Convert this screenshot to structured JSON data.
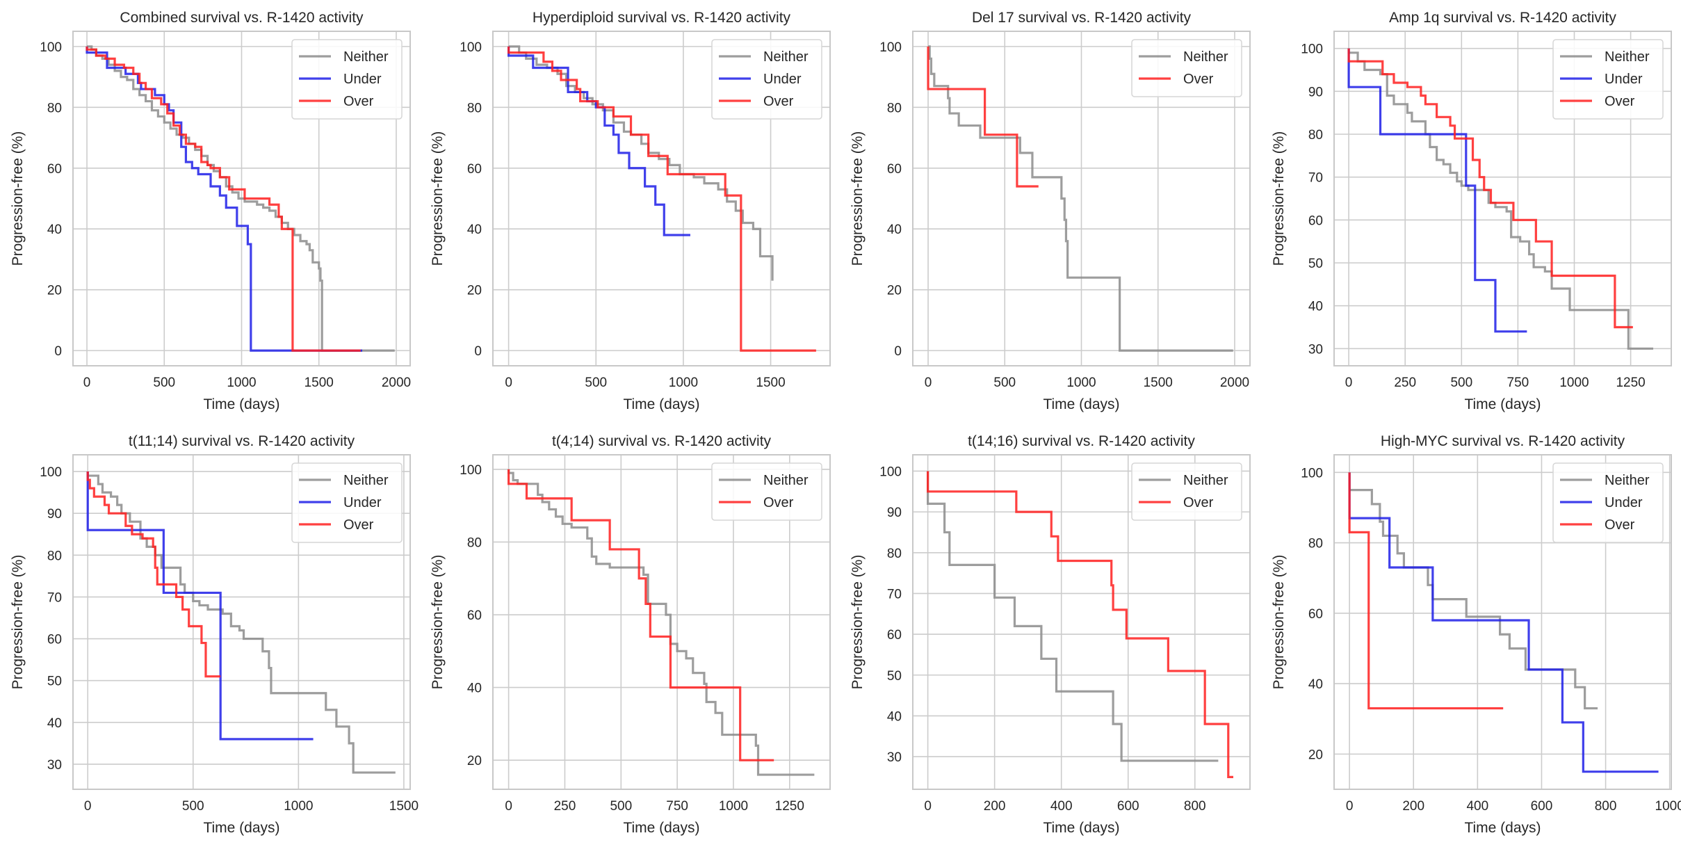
{
  "figure": {
    "colors": {
      "Neither": "#8c8c8c",
      "Under": "#1f1fe8",
      "Over": "#ff1f1f",
      "grid": "#cccccc",
      "frame": "#c8c8c8"
    },
    "legend_position": "top-right"
  },
  "chart_data": [
    {
      "type": "line",
      "title": "Combined survival vs. R-1420 activity",
      "xlabel": "Time (days)",
      "ylabel": "Progression-free (%)",
      "xlim": [
        -90,
        2090
      ],
      "ylim": [
        -5,
        105
      ],
      "xticks": [
        0,
        500,
        1000,
        1500,
        2000
      ],
      "yticks": [
        0,
        20,
        40,
        60,
        80,
        100
      ],
      "grid": true,
      "legend": [
        "Neither",
        "Under",
        "Over"
      ],
      "series": [
        {
          "name": "Neither",
          "x": [
            0,
            30,
            60,
            100,
            140,
            180,
            220,
            260,
            300,
            340,
            380,
            420,
            460,
            500,
            540,
            580,
            620,
            660,
            700,
            740,
            780,
            820,
            860,
            900,
            940,
            980,
            1020,
            1060,
            1100,
            1140,
            1180,
            1220,
            1260,
            1300,
            1340,
            1380,
            1420,
            1440,
            1460,
            1500,
            1510,
            1520,
            1990
          ],
          "y": [
            100,
            99,
            97,
            96,
            94,
            92,
            90,
            89,
            86,
            84,
            82,
            79,
            77,
            75,
            73,
            71,
            70,
            68,
            66,
            64,
            61,
            59,
            57,
            54,
            52,
            50,
            49,
            49,
            48,
            47,
            46,
            44,
            42,
            40,
            38,
            36,
            35,
            33,
            29,
            27,
            23,
            0,
            0
          ]
        },
        {
          "name": "Under",
          "x": [
            0,
            130,
            250,
            330,
            350,
            440,
            500,
            530,
            560,
            610,
            640,
            680,
            720,
            800,
            860,
            900,
            970,
            1040,
            1060,
            1780
          ],
          "y": [
            98,
            93,
            91,
            88,
            86,
            84,
            81,
            79,
            75,
            67,
            62,
            60,
            58,
            54,
            51,
            47,
            41,
            35,
            0,
            0
          ]
        },
        {
          "name": "Over",
          "x": [
            0,
            60,
            120,
            180,
            240,
            300,
            340,
            380,
            420,
            480,
            520,
            560,
            600,
            640,
            700,
            740,
            780,
            800,
            860,
            920,
            1020,
            1180,
            1240,
            1260,
            1330,
            1770
          ],
          "y": [
            99,
            97,
            96,
            94,
            93,
            91,
            88,
            86,
            83,
            81,
            78,
            74,
            71,
            68,
            67,
            62,
            61,
            60,
            57,
            53,
            50,
            48,
            44,
            40,
            0,
            0
          ]
        }
      ]
    },
    {
      "type": "line",
      "title": "Hyperdiploid survival vs. R-1420 activity",
      "xlabel": "Time (days)",
      "ylabel": "Progression-free (%)",
      "xlim": [
        -90,
        1840
      ],
      "ylim": [
        -5,
        105
      ],
      "xticks": [
        0,
        500,
        1000,
        1500
      ],
      "yticks": [
        0,
        20,
        40,
        60,
        80,
        100
      ],
      "grid": true,
      "legend": [
        "Neither",
        "Under",
        "Over"
      ],
      "series": [
        {
          "name": "Neither",
          "x": [
            0,
            60,
            100,
            160,
            220,
            280,
            330,
            380,
            430,
            480,
            540,
            600,
            660,
            700,
            760,
            800,
            860,
            920,
            980,
            1060,
            1120,
            1200,
            1250,
            1300,
            1340,
            1400,
            1440,
            1510
          ],
          "y": [
            100,
            98,
            96,
            94,
            93,
            91,
            87,
            85,
            83,
            81,
            79,
            75,
            72,
            71,
            68,
            65,
            63,
            61,
            58,
            57,
            55,
            53,
            49,
            46,
            42,
            40,
            31,
            23
          ]
        },
        {
          "name": "Under",
          "x": [
            0,
            140,
            340,
            450,
            500,
            550,
            600,
            630,
            690,
            780,
            840,
            890,
            1040
          ],
          "y": [
            97,
            93,
            85,
            82,
            80,
            74,
            71,
            65,
            60,
            54,
            48,
            38,
            38
          ]
        },
        {
          "name": "Over",
          "x": [
            0,
            200,
            250,
            300,
            390,
            410,
            510,
            600,
            700,
            800,
            910,
            1240,
            1330,
            1760
          ],
          "y": [
            98,
            95,
            92,
            89,
            86,
            82,
            80,
            77,
            71,
            64,
            58,
            51,
            0,
            0
          ]
        }
      ]
    },
    {
      "type": "line",
      "title": "Del 17 survival vs. R-1420 activity",
      "xlabel": "Time (days)",
      "ylabel": "Progression-free (%)",
      "xlim": [
        -100,
        2100
      ],
      "ylim": [
        -5,
        105
      ],
      "xticks": [
        0,
        500,
        1000,
        1500,
        2000
      ],
      "yticks": [
        0,
        20,
        40,
        60,
        80,
        100
      ],
      "grid": true,
      "legend": [
        "Neither",
        "Over"
      ],
      "series": [
        {
          "name": "Neither",
          "x": [
            0,
            10,
            20,
            40,
            130,
            140,
            200,
            340,
            600,
            680,
            870,
            890,
            900,
            910,
            1250,
            1990
          ],
          "y": [
            100,
            96,
            91,
            87,
            83,
            78,
            74,
            70,
            65,
            57,
            50,
            43,
            36,
            24,
            0,
            0
          ]
        },
        {
          "name": "Over",
          "x": [
            0,
            370,
            580,
            720
          ],
          "y": [
            86,
            71,
            54,
            54
          ]
        }
      ]
    },
    {
      "type": "line",
      "title": "Amp 1q survival vs. R-1420 activity",
      "xlabel": "Time (days)",
      "ylabel": "Progression-free (%)",
      "xlim": [
        -65,
        1430
      ],
      "ylim": [
        26,
        104
      ],
      "xticks": [
        0,
        250,
        500,
        750,
        1000,
        1250
      ],
      "yticks": [
        30,
        40,
        50,
        60,
        70,
        80,
        90,
        100
      ],
      "grid": true,
      "legend": [
        "Neither",
        "Under",
        "Over"
      ],
      "series": [
        {
          "name": "Neither",
          "x": [
            0,
            40,
            70,
            140,
            170,
            200,
            260,
            280,
            340,
            360,
            390,
            420,
            450,
            480,
            500,
            530,
            620,
            650,
            700,
            720,
            760,
            800,
            820,
            870,
            900,
            980,
            1240,
            1350
          ],
          "y": [
            99,
            97,
            95,
            94,
            89,
            87,
            85,
            83,
            80,
            77,
            74,
            73,
            71,
            69,
            68,
            67,
            64,
            63,
            62,
            56,
            55,
            52,
            49,
            48,
            44,
            39,
            30,
            30
          ]
        },
        {
          "name": "Under",
          "x": [
            0,
            140,
            520,
            560,
            650,
            790
          ],
          "y": [
            91,
            80,
            68,
            46,
            34,
            34
          ]
        },
        {
          "name": "Over",
          "x": [
            0,
            150,
            200,
            260,
            320,
            340,
            390,
            450,
            470,
            550,
            580,
            600,
            630,
            730,
            830,
            900,
            1180,
            1260
          ],
          "y": [
            97,
            94,
            92,
            91,
            89,
            87,
            84,
            82,
            79,
            74,
            70,
            67,
            64,
            60,
            55,
            47,
            35,
            35
          ]
        }
      ]
    },
    {
      "type": "line",
      "title": "t(11;14) survival vs. R-1420 activity",
      "xlabel": "Time (days)",
      "ylabel": "Progression-free (%)",
      "xlim": [
        -70,
        1530
      ],
      "ylim": [
        24,
        104
      ],
      "xticks": [
        0,
        500,
        1000,
        1500
      ],
      "yticks": [
        30,
        40,
        50,
        60,
        70,
        80,
        90,
        100
      ],
      "grid": true,
      "legend": [
        "Neither",
        "Under",
        "Over"
      ],
      "series": [
        {
          "name": "Neither",
          "x": [
            0,
            50,
            70,
            110,
            140,
            160,
            200,
            250,
            280,
            320,
            350,
            440,
            460,
            500,
            530,
            570,
            640,
            680,
            720,
            740,
            830,
            860,
            870,
            1130,
            1180,
            1240,
            1260,
            1460
          ],
          "y": [
            99,
            97,
            95,
            94,
            92,
            90,
            88,
            84,
            82,
            80,
            77,
            73,
            71,
            69,
            68,
            67,
            66,
            63,
            62,
            60,
            57,
            53,
            47,
            43,
            39,
            35,
            28,
            28
          ]
        },
        {
          "name": "Under",
          "x": [
            0,
            360,
            630,
            1070
          ],
          "y": [
            86,
            71,
            36,
            36
          ]
        },
        {
          "name": "Over",
          "x": [
            0,
            10,
            30,
            80,
            100,
            180,
            210,
            260,
            310,
            320,
            330,
            420,
            450,
            480,
            540,
            560,
            630
          ],
          "y": [
            98,
            96,
            94,
            92,
            90,
            87,
            85,
            84,
            82,
            77,
            73,
            70,
            67,
            63,
            59,
            51,
            51
          ]
        }
      ]
    },
    {
      "type": "line",
      "title": "t(4;14) survival vs. R-1420 activity",
      "xlabel": "Time (days)",
      "ylabel": "Progression-free (%)",
      "xlim": [
        -70,
        1430
      ],
      "ylim": [
        12,
        104
      ],
      "xticks": [
        0,
        250,
        500,
        750,
        1000,
        1250
      ],
      "yticks": [
        20,
        40,
        60,
        80,
        100
      ],
      "grid": true,
      "legend": [
        "Neither",
        "Over"
      ],
      "series": [
        {
          "name": "Neither",
          "x": [
            0,
            20,
            40,
            130,
            150,
            180,
            210,
            240,
            280,
            350,
            370,
            390,
            450,
            600,
            620,
            700,
            720,
            750,
            790,
            820,
            870,
            880,
            920,
            950,
            1100,
            1110,
            1360
          ],
          "y": [
            99,
            97,
            96,
            93,
            91,
            89,
            87,
            85,
            84,
            81,
            76,
            74,
            73,
            71,
            63,
            60,
            52,
            50,
            48,
            44,
            41,
            36,
            33,
            27,
            24,
            16,
            16
          ]
        },
        {
          "name": "Over",
          "x": [
            0,
            80,
            280,
            450,
            580,
            610,
            630,
            720,
            1030,
            1180
          ],
          "y": [
            96,
            92,
            86,
            78,
            70,
            63,
            54,
            40,
            20,
            20
          ]
        }
      ]
    },
    {
      "type": "line",
      "title": "t(14;16) survival vs. R-1420 activity",
      "xlabel": "Time (days)",
      "ylabel": "Progression-free (%)",
      "xlim": [
        -45,
        965
      ],
      "ylim": [
        22,
        104
      ],
      "xticks": [
        0,
        200,
        400,
        600,
        800
      ],
      "yticks": [
        30,
        40,
        50,
        60,
        70,
        80,
        90,
        100
      ],
      "grid": true,
      "legend": [
        "Neither",
        "Over"
      ],
      "series": [
        {
          "name": "Neither",
          "x": [
            0,
            50,
            65,
            200,
            260,
            340,
            385,
            555,
            580,
            870
          ],
          "y": [
            92,
            85,
            77,
            69,
            62,
            54,
            46,
            38,
            29,
            29
          ]
        },
        {
          "name": "Over",
          "x": [
            0,
            265,
            370,
            390,
            550,
            555,
            595,
            720,
            830,
            900,
            915
          ],
          "y": [
            95,
            90,
            84,
            78,
            72,
            66,
            59,
            51,
            38,
            25,
            25
          ]
        }
      ]
    },
    {
      "type": "line",
      "title": "High-MYC survival vs. R-1420 activity",
      "xlabel": "Time (days)",
      "ylabel": "Progression-free (%)",
      "xlim": [
        -48,
        1005
      ],
      "ylim": [
        10,
        105
      ],
      "xticks": [
        0,
        200,
        400,
        600,
        800,
        1000
      ],
      "yticks": [
        20,
        40,
        60,
        80,
        100
      ],
      "grid": true,
      "legend": [
        "Neither",
        "Under",
        "Over"
      ],
      "series": [
        {
          "name": "Neither",
          "x": [
            0,
            70,
            95,
            105,
            150,
            170,
            245,
            260,
            365,
            470,
            500,
            550,
            560,
            705,
            735,
            775
          ],
          "y": [
            95,
            91,
            86,
            82,
            77,
            73,
            68,
            64,
            59,
            54,
            50,
            44,
            44,
            39,
            33,
            33
          ]
        },
        {
          "name": "Under",
          "x": [
            0,
            125,
            260,
            560,
            665,
            730,
            965
          ],
          "y": [
            87,
            73,
            58,
            44,
            29,
            15,
            15
          ]
        },
        {
          "name": "Over",
          "x": [
            0,
            60,
            480
          ],
          "y": [
            83,
            33,
            33
          ]
        }
      ]
    }
  ]
}
